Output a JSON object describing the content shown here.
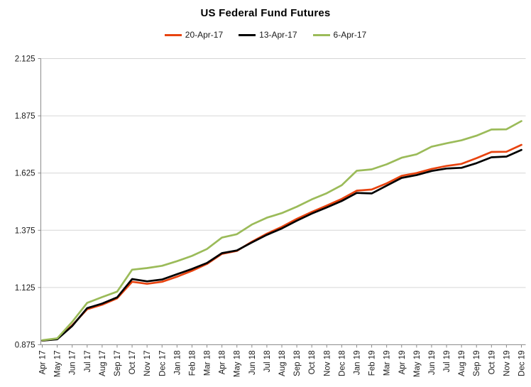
{
  "chart_data": {
    "type": "line",
    "title": "US Federal Fund Futures",
    "xlabel": "",
    "ylabel": "",
    "ylim": [
      0.875,
      2.125
    ],
    "yticks": [
      "0.875",
      "1.125",
      "1.375",
      "1.625",
      "1.875",
      "2.125"
    ],
    "grid": "horizontal",
    "legend_position": "top",
    "categories": [
      "Apr 17",
      "May 17",
      "Jun 17",
      "Jul 17",
      "Aug 17",
      "Sep 17",
      "Oct 17",
      "Nov 17",
      "Dec 17",
      "Jan 18",
      "Feb 18",
      "Mar 18",
      "Apr 18",
      "May 18",
      "Jun 18",
      "Jul 18",
      "Aug 18",
      "Sep 18",
      "Oct 18",
      "Nov 18",
      "Dec 18",
      "Jan 19",
      "Feb 19",
      "Mar 19",
      "Apr 19",
      "May 19",
      "Jun 19",
      "Jul 19",
      "Aug 19",
      "Sep 19",
      "Oct 19",
      "Nov 19",
      "Dec 19"
    ],
    "series": [
      {
        "name": "20-Apr-17",
        "color": "#E8430F",
        "values": [
          0.893,
          0.9,
          0.96,
          1.03,
          1.05,
          1.078,
          1.15,
          1.141,
          1.15,
          1.172,
          1.198,
          1.228,
          1.272,
          1.285,
          1.325,
          1.36,
          1.39,
          1.425,
          1.455,
          1.483,
          1.512,
          1.548,
          1.553,
          1.58,
          1.613,
          1.625,
          1.643,
          1.656,
          1.665,
          1.69,
          1.717,
          1.718,
          1.748
        ]
      },
      {
        "name": "13-Apr-17",
        "color": "#000000",
        "values": [
          0.893,
          0.899,
          0.957,
          1.035,
          1.055,
          1.082,
          1.162,
          1.152,
          1.16,
          1.183,
          1.206,
          1.232,
          1.275,
          1.287,
          1.322,
          1.355,
          1.383,
          1.417,
          1.448,
          1.475,
          1.503,
          1.538,
          1.536,
          1.57,
          1.604,
          1.616,
          1.634,
          1.645,
          1.648,
          1.668,
          1.694,
          1.697,
          1.726
        ]
      },
      {
        "name": "6-Apr-17",
        "color": "#9BBB59",
        "values": [
          0.895,
          0.903,
          0.975,
          1.058,
          1.083,
          1.107,
          1.203,
          1.21,
          1.22,
          1.24,
          1.263,
          1.293,
          1.343,
          1.358,
          1.4,
          1.43,
          1.45,
          1.478,
          1.51,
          1.537,
          1.572,
          1.635,
          1.641,
          1.663,
          1.692,
          1.707,
          1.74,
          1.755,
          1.768,
          1.788,
          1.815,
          1.816,
          1.852
        ]
      }
    ],
    "colors": {
      "gridline": "#D6D6D6",
      "axis": "#8C8C8C",
      "label": "#1A1A1A"
    }
  }
}
